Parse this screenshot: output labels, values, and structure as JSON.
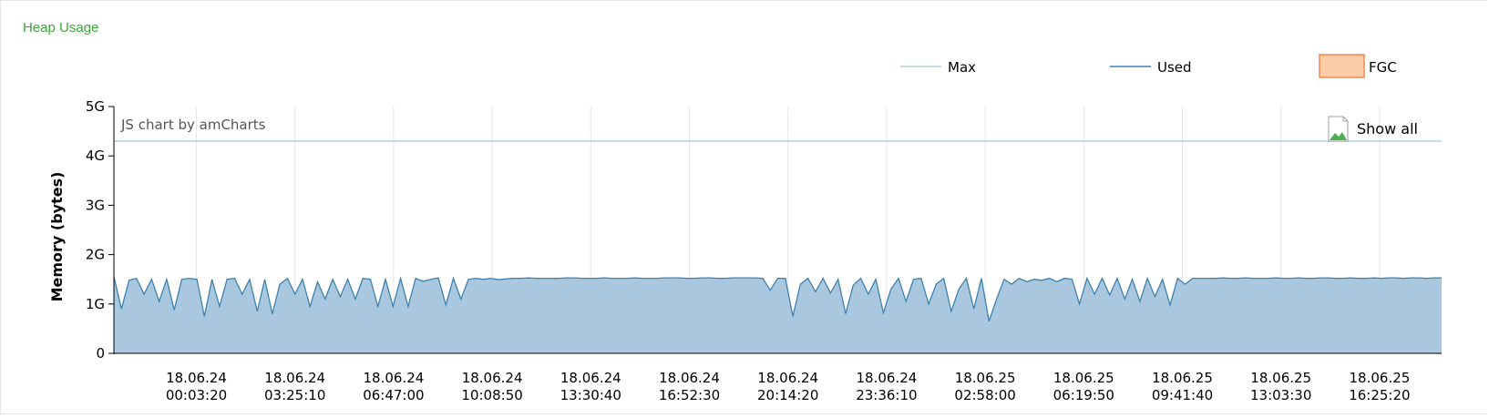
{
  "panel": {
    "title": "Heap Usage"
  },
  "chart": {
    "credit": "JS chart by amCharts",
    "show_all_label": "Show all"
  },
  "colors": {
    "max": "#b4cde0",
    "used_line": "#3f81ad",
    "used_fill": "#a9c8df",
    "fgc_fill": "#fccba8",
    "fgc_border": "#f28a4a",
    "grid": "#e3e8ee",
    "title": "#3aa63a"
  },
  "chart_data": {
    "type": "area",
    "ylabel": "Memory (bytes)",
    "ylim": [
      0,
      5
    ],
    "yticks": [
      "0",
      "1G",
      "2G",
      "3G",
      "4G",
      "5G"
    ],
    "xticks": [
      [
        "18.06.24",
        "00:03:20"
      ],
      [
        "18.06.24",
        "03:25:10"
      ],
      [
        "18.06.24",
        "06:47:00"
      ],
      [
        "18.06.24",
        "10:08:50"
      ],
      [
        "18.06.24",
        "13:30:40"
      ],
      [
        "18.06.24",
        "16:52:30"
      ],
      [
        "18.06.24",
        "20:14:20"
      ],
      [
        "18.06.24",
        "23:36:10"
      ],
      [
        "18.06.25",
        "02:58:00"
      ],
      [
        "18.06.25",
        "06:19:50"
      ],
      [
        "18.06.25",
        "09:41:40"
      ],
      [
        "18.06.25",
        "13:03:30"
      ],
      [
        "18.06.25",
        "16:25:20"
      ]
    ],
    "x_range_ticks": [
      -0.83,
      12.59
    ],
    "legend": {
      "position": "top-right",
      "items": [
        {
          "name": "Max",
          "marker": "line"
        },
        {
          "name": "Used",
          "marker": "line"
        },
        {
          "name": "FGC",
          "marker": "box"
        }
      ]
    },
    "series": [
      {
        "name": "Max",
        "values": [
          4.3,
          4.3
        ]
      },
      {
        "name": "Used",
        "values": [
          1.55,
          0.9,
          1.48,
          1.52,
          1.2,
          1.5,
          1.05,
          1.5,
          0.88,
          1.5,
          1.52,
          1.5,
          0.75,
          1.5,
          0.95,
          1.5,
          1.52,
          1.2,
          1.5,
          0.85,
          1.5,
          0.8,
          1.4,
          1.52,
          1.2,
          1.5,
          0.95,
          1.45,
          1.1,
          1.5,
          1.15,
          1.5,
          1.1,
          1.52,
          1.5,
          0.95,
          1.5,
          0.95,
          1.52,
          0.95,
          1.52,
          1.46,
          1.5,
          1.53,
          0.98,
          1.52,
          1.1,
          1.5,
          1.52,
          1.5,
          1.52,
          1.49,
          1.51,
          1.52,
          1.52,
          1.53,
          1.52,
          1.52,
          1.52,
          1.52,
          1.53,
          1.53,
          1.52,
          1.52,
          1.52,
          1.53,
          1.52,
          1.52,
          1.52,
          1.53,
          1.52,
          1.52,
          1.52,
          1.53,
          1.53,
          1.53,
          1.52,
          1.52,
          1.53,
          1.53,
          1.52,
          1.52,
          1.53,
          1.53,
          1.53,
          1.53,
          1.52,
          1.28,
          1.52,
          1.52,
          0.75,
          1.4,
          1.52,
          1.25,
          1.52,
          1.22,
          1.5,
          0.8,
          1.38,
          1.52,
          1.2,
          1.5,
          0.82,
          1.3,
          1.52,
          1.05,
          1.5,
          1.52,
          1.0,
          1.4,
          1.52,
          0.85,
          1.3,
          1.52,
          0.9,
          1.52,
          0.65,
          1.1,
          1.5,
          1.4,
          1.52,
          1.45,
          1.5,
          1.48,
          1.52,
          1.45,
          1.52,
          1.5,
          1.0,
          1.52,
          1.2,
          1.52,
          1.18,
          1.52,
          1.1,
          1.5,
          1.05,
          1.52,
          1.15,
          1.5,
          0.98,
          1.52,
          1.4,
          1.52,
          1.52,
          1.52,
          1.52,
          1.53,
          1.52,
          1.52,
          1.53,
          1.52,
          1.52,
          1.52,
          1.53,
          1.52,
          1.52,
          1.53,
          1.52,
          1.52,
          1.53,
          1.53,
          1.52,
          1.52,
          1.53,
          1.52,
          1.52,
          1.53,
          1.52,
          1.53,
          1.53,
          1.52,
          1.53,
          1.53,
          1.52,
          1.53,
          1.53
        ]
      },
      {
        "name": "FGC",
        "values": []
      }
    ]
  }
}
